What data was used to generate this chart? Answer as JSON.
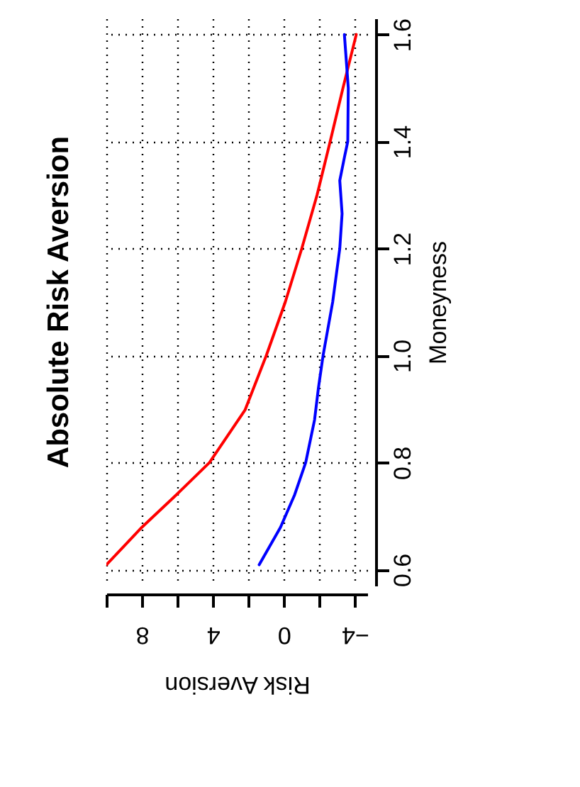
{
  "chart_data": {
    "type": "line",
    "title": "Absolute Risk Aversion",
    "xlabel": "Risk Aversion",
    "ylabel": "Moneyness",
    "xlim": [
      10,
      -4.7
    ],
    "xticks": [
      {
        "value": 10,
        "label": null
      },
      8,
      {
        "value": 6,
        "label": null
      },
      4,
      {
        "value": 2,
        "label": null
      },
      0,
      {
        "value": -2,
        "label": null
      },
      {
        "value": -4,
        "label": "−4"
      }
    ],
    "ylim": [
      0.57,
      1.63
    ],
    "yticks": [
      {
        "value": 0.6,
        "label": "0.6"
      },
      {
        "value": 0.8,
        "label": "0.8"
      },
      {
        "value": 1.0,
        "label": "1.0"
      },
      {
        "value": 1.2,
        "label": "1.2"
      },
      {
        "value": 1.4,
        "label": "1.4"
      },
      {
        "value": 1.6,
        "label": "1.6"
      }
    ],
    "grid": true,
    "legend": false,
    "series": [
      {
        "color": "#ff0000",
        "x": [
          10.0,
          8.0,
          6.05,
          4.19,
          2.19,
          0.99,
          -0.08,
          -1.01,
          -1.87,
          -2.61,
          -3.33,
          -4.08
        ],
        "values": [
          0.609,
          0.679,
          0.74,
          0.8,
          0.898,
          1.0,
          1.1,
          1.2,
          1.3,
          1.4,
          1.5,
          1.6
        ]
      },
      {
        "color": "#0000ff",
        "x": [
          1.39,
          0.19,
          -0.61,
          -1.23,
          -1.73,
          -1.95,
          -2.21,
          -2.75,
          -3.15,
          -3.28,
          -3.15,
          -3.41,
          -3.6,
          -3.63,
          -3.41
        ],
        "values": [
          0.609,
          0.679,
          0.74,
          0.8,
          0.88,
          0.94,
          1.0,
          1.1,
          1.2,
          1.265,
          1.327,
          1.37,
          1.4,
          1.5,
          1.6
        ]
      }
    ]
  }
}
